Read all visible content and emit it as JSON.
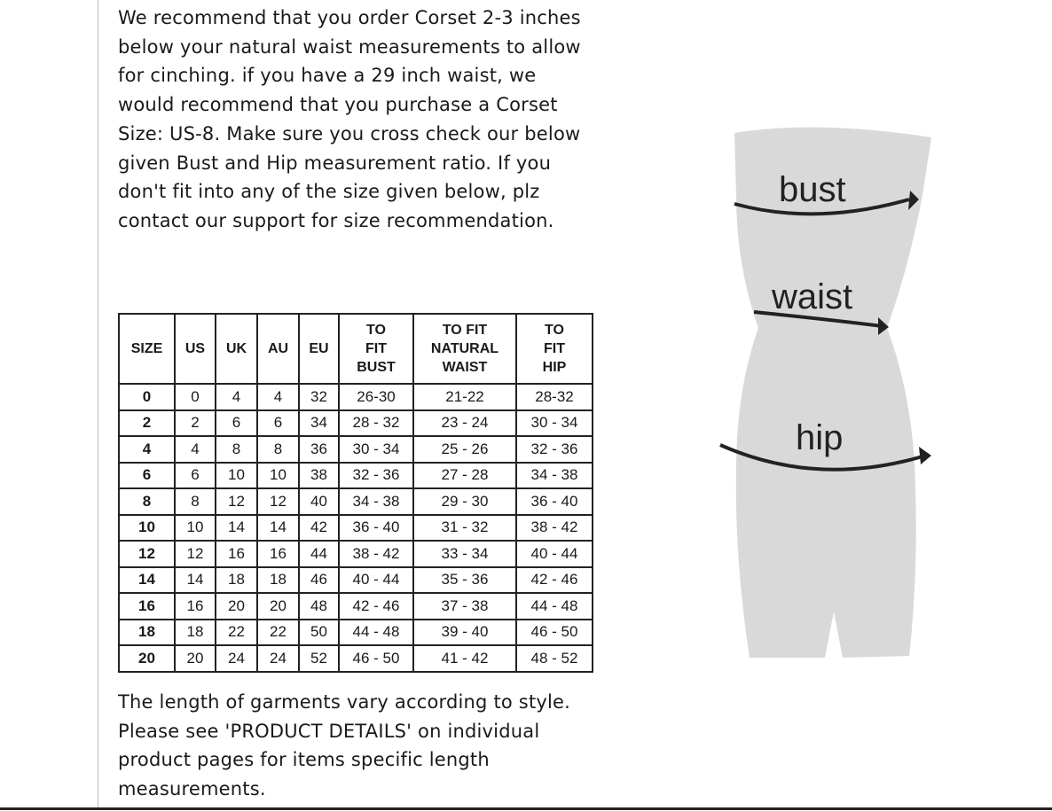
{
  "intro_text": "We recommend that you order Corset 2-3 inches below your natural waist measurements to allow for cinching. if you have a 29 inch waist, we would recommend that you purchase a Corset Size: US-8. Make sure you cross check our below given Bust and Hip measurement ratio. If you don't fit into any of the size given below, plz contact our support for size recommendation.",
  "table": {
    "headers": [
      "SIZE",
      "US",
      "UK",
      "AU",
      "EU",
      "TO FIT BUST",
      "TO FIT NATURAL WAIST",
      "TO FIT HIP"
    ],
    "rows": [
      [
        "0",
        "0",
        "4",
        "4",
        "32",
        "26-30",
        "21-22",
        "28-32"
      ],
      [
        "2",
        "2",
        "6",
        "6",
        "34",
        "28 - 32",
        "23 - 24",
        "30 - 34"
      ],
      [
        "4",
        "4",
        "8",
        "8",
        "36",
        "30 - 34",
        "25 - 26",
        "32 - 36"
      ],
      [
        "6",
        "6",
        "10",
        "10",
        "38",
        "32 - 36",
        "27 - 28",
        "34 - 38"
      ],
      [
        "8",
        "8",
        "12",
        "12",
        "40",
        "34 - 38",
        "29 - 30",
        "36 - 40"
      ],
      [
        "10",
        "10",
        "14",
        "14",
        "42",
        "36 - 40",
        "31 - 32",
        "38 - 42"
      ],
      [
        "12",
        "12",
        "16",
        "16",
        "44",
        "38 - 42",
        "33 - 34",
        "40 - 44"
      ],
      [
        "14",
        "14",
        "18",
        "18",
        "46",
        "40 - 44",
        "35 - 36",
        "42 - 46"
      ],
      [
        "16",
        "16",
        "20",
        "20",
        "48",
        "42 - 46",
        "37 - 38",
        "44 - 48"
      ],
      [
        "18",
        "18",
        "22",
        "22",
        "50",
        "44 - 48",
        "39 - 40",
        "46 - 50"
      ],
      [
        "20",
        "20",
        "24",
        "24",
        "52",
        "46 - 50",
        "41 - 42",
        "48 - 52"
      ]
    ]
  },
  "outro_text": "The length of garments vary according to style. Please see 'PRODUCT DETAILS'  on individual product pages for items specific length measurements.",
  "figure": {
    "labels": {
      "bust": "bust",
      "waist": "waist",
      "hip": "hip"
    },
    "body_color": "#d9d9d9"
  }
}
